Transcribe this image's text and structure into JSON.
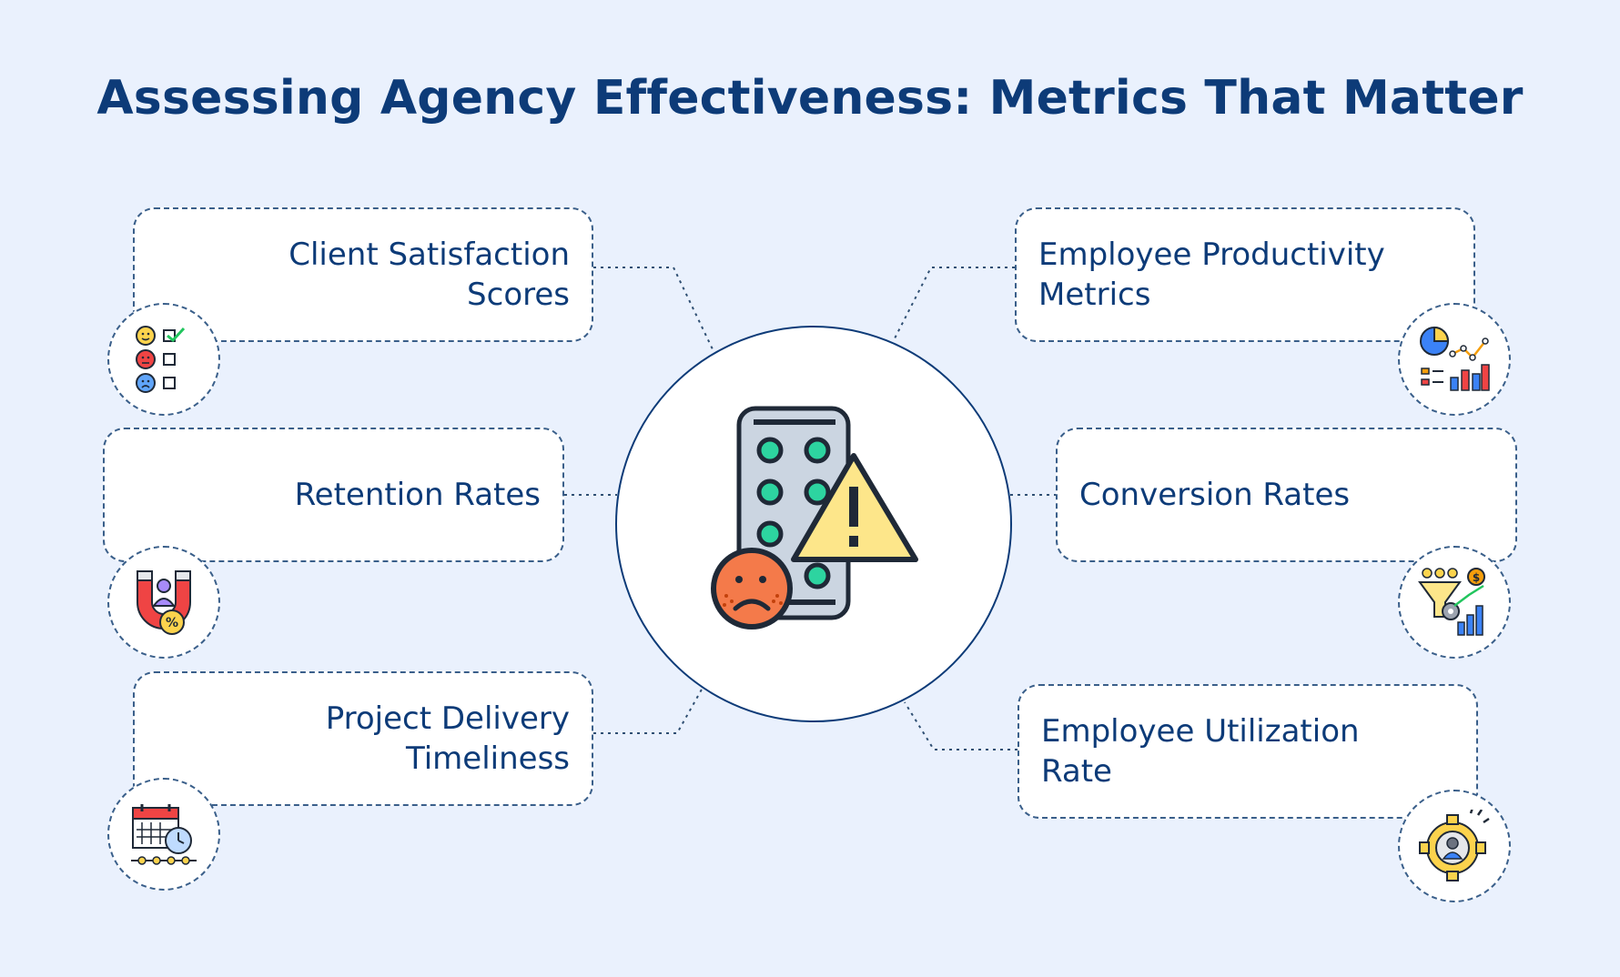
{
  "title": "Assessing Agency Effectiveness: Metrics That Matter",
  "colors": {
    "background": "#eaf1fd",
    "title": "#0d3b78",
    "dashed_border": "#3a5f8a",
    "accent_green": "#2dd4a0",
    "accent_yellow": "#fde68a",
    "accent_orange": "#f47a4a"
  },
  "center": {
    "icon": "pill-pack-warning-sad-face-icon"
  },
  "metrics": [
    {
      "label": "Client Satisfaction\nScores",
      "icon": "satisfaction-survey-icon"
    },
    {
      "label": "Retention Rates",
      "icon": "customer-magnet-icon"
    },
    {
      "label": "Project Delivery\nTimeliness",
      "icon": "calendar-stopwatch-icon"
    },
    {
      "label": "Employee Productivity\nMetrics",
      "icon": "analytics-dashboard-icon"
    },
    {
      "label": "Conversion Rates",
      "icon": "sales-funnel-icon"
    },
    {
      "label": "Employee Utilization\nRate",
      "icon": "employee-gear-icon"
    }
  ]
}
